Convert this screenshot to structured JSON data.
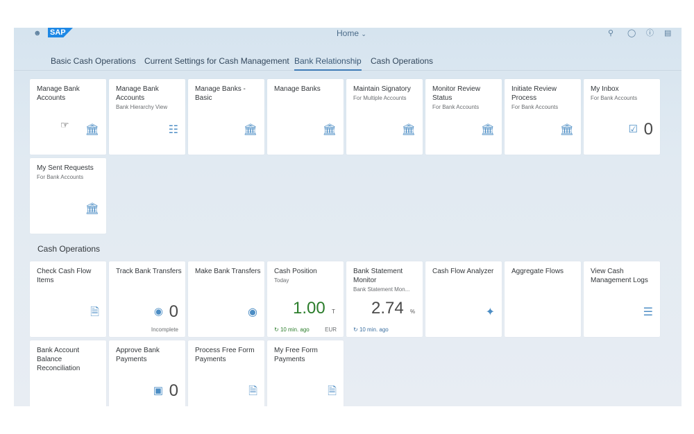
{
  "shell": {
    "title": "Home",
    "logo": "SAP"
  },
  "tabs": [
    "Basic Cash Operations",
    "Current Settings for Cash Management",
    "Bank Relationship",
    "Cash Operations"
  ],
  "section": "Cash Operations",
  "tiles1": [
    {
      "title": "Manage Bank Accounts",
      "subtitle": "",
      "icon": "bank-icon"
    },
    {
      "title": "Manage Bank Accounts",
      "subtitle": "Bank Hierarchy View",
      "icon": "hierarchy-icon"
    },
    {
      "title": "Manage Banks - Basic",
      "subtitle": "",
      "icon": "bank-icon"
    },
    {
      "title": "Manage Banks",
      "subtitle": "",
      "icon": "bank-icon"
    },
    {
      "title": "Maintain Signatory",
      "subtitle": "For Multiple Accounts",
      "icon": "bank-icon"
    },
    {
      "title": "Monitor Review Status",
      "subtitle": "For Bank Accounts",
      "icon": "bank-icon"
    },
    {
      "title": "Initiate Review Process",
      "subtitle": "For Bank Accounts",
      "icon": "bank-icon"
    },
    {
      "title": "My Inbox",
      "subtitle": "For Bank Accounts",
      "count": "0",
      "icon": "inbox-check-icon"
    },
    {
      "title": "My Sent Requests",
      "subtitle": "For Bank Accounts",
      "icon": "bank-icon"
    }
  ],
  "tiles2": [
    {
      "title": "Check Cash Flow Items",
      "icon": "document-icon"
    },
    {
      "title": "Track Bank Transfers",
      "count": "0",
      "footer": "Incomplete",
      "icon": "money-icon"
    },
    {
      "title": "Make Bank Transfers",
      "icon": "money-icon"
    },
    {
      "title": "Cash Position",
      "subtitle": "Today",
      "value": "1.00",
      "unit": "T",
      "refresh": "10 min. ago",
      "currency": "EUR"
    },
    {
      "title": "Bank Statement Monitor",
      "subtitle": "Bank Statement Mon...",
      "value": "2.74",
      "unit": "%",
      "refresh": "10 min. ago"
    },
    {
      "title": "Cash Flow Analyzer",
      "icon": "analyze-icon"
    },
    {
      "title": "Aggregate Flows"
    },
    {
      "title": "View Cash Management Logs",
      "icon": "list-icon"
    },
    {
      "title": "Bank Account Balance Reconciliation"
    },
    {
      "title": "Approve Bank Payments",
      "count": "0",
      "icon": "approve-icon"
    },
    {
      "title": "Process Free Form Payments",
      "icon": "payment-doc-icon"
    },
    {
      "title": "My Free Form Payments",
      "icon": "payment-doc-icon"
    }
  ],
  "colors": {
    "kpi_green": "#2b7d2b",
    "accent": "#3f7cb6"
  }
}
